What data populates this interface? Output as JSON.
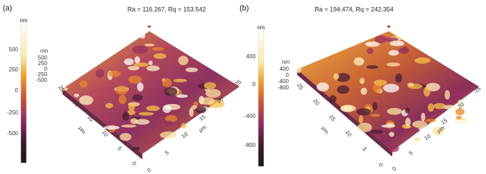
{
  "panels": [
    {
      "label": "(a)",
      "title": "Ra = 116.267, Rq = 153.542",
      "colorbar_unit": "nm",
      "colorbar_ticks": [
        "500",
        "250",
        "0",
        "-250",
        "-500"
      ],
      "z_unit": "nm",
      "z_ticks": [
        "500",
        "250",
        "0",
        "-250",
        "-500"
      ],
      "x_ticks": [
        "0",
        "5",
        "10",
        "15",
        "20",
        "25"
      ],
      "x_unit": "μm",
      "y_ticks": [
        "0",
        "5",
        "10",
        "15",
        "20",
        "25"
      ],
      "y_unit": "μm"
    },
    {
      "label": "(b)",
      "title": "Ra = 194.474, Rq = 242.354",
      "colorbar_unit": "nm",
      "colorbar_ticks": [
        "400",
        "0",
        "-400",
        "-800"
      ],
      "z_unit": "nm",
      "z_ticks": [
        "400",
        "0",
        "-400",
        "-800"
      ],
      "x_ticks": [
        "0",
        "5",
        "10",
        "15",
        "20",
        "25"
      ],
      "x_unit": "μm",
      "y_ticks": [
        "0",
        "5",
        "10",
        "15",
        "20",
        "25"
      ],
      "y_unit": "μm"
    }
  ]
}
